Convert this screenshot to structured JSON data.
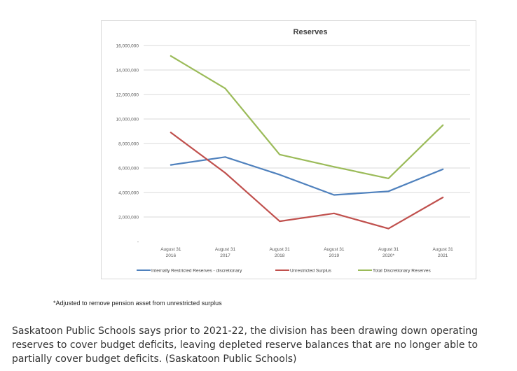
{
  "chart_data": {
    "type": "line",
    "title": "Reserves",
    "categories": [
      [
        "August 31",
        "2016"
      ],
      [
        "August 31",
        "2017"
      ],
      [
        "August 31",
        "2018"
      ],
      [
        "August 31",
        "2019"
      ],
      [
        "August 31",
        "2020*"
      ],
      [
        "August 31",
        "2021"
      ]
    ],
    "y_ticks": [
      "-",
      "2,000,000",
      "4,000,000",
      "6,000,000",
      "8,000,000",
      "10,000,000",
      "12,000,000",
      "14,000,000",
      "16,000,000"
    ],
    "ylim": [
      0,
      16000000
    ],
    "grid": true,
    "legend_position": "bottom",
    "series": [
      {
        "name": "Internally Restricted Reserves - discretionary",
        "color": "#4f81bd",
        "values": [
          6250000,
          6900000,
          5450000,
          3800000,
          4100000,
          5900000
        ]
      },
      {
        "name": "Unrestricted Surplus",
        "color": "#c0504d",
        "values": [
          8900000,
          5600000,
          1650000,
          2300000,
          1050000,
          3600000
        ]
      },
      {
        "name": "Total Discretionary Reserves",
        "color": "#9bbb59",
        "values": [
          15150000,
          12500000,
          7100000,
          6100000,
          5150000,
          9500000
        ]
      }
    ]
  },
  "footnote": "*Adjusted to remove pension asset from unrestricted surplus",
  "caption": "Saskatoon Public Schools says prior to 2021-22, the division has been drawing down operating reserves to cover budget deficits, leaving depleted reserve balances that are no longer able to partially cover budget deficits. (Saskatoon Public Schools)"
}
